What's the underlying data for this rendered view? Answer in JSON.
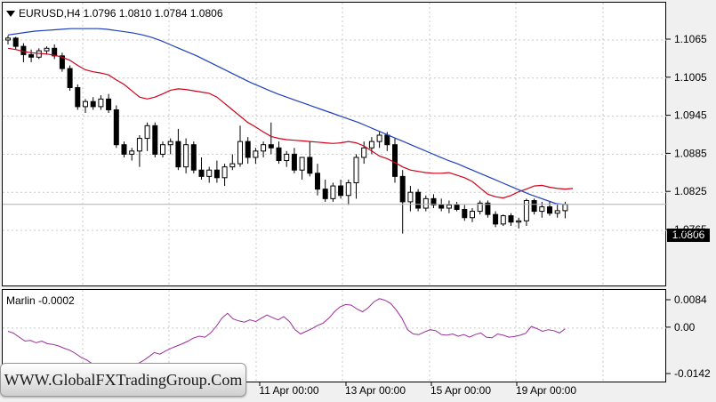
{
  "header": {
    "title": "EURUSD,H4  1.0796 1.0810 1.0784 1.0806"
  },
  "current_price": "1.0806",
  "indicator": {
    "title": "Marlin -0.0002"
  },
  "watermark": "WWW.GlobalFXTradingGroup.Com",
  "colors": {
    "candle_up": "#ffffff",
    "candle_down": "#000000",
    "ma_fast": "#d0021b",
    "ma_slow": "#1f3fbf",
    "indicator_line": "#9b2d9b",
    "grid": "#c8c8c8"
  },
  "chart_data": [
    {
      "type": "candlestick",
      "symbol": "EURUSD",
      "timeframe": "H4",
      "ylim": [
        1.074,
        1.11
      ],
      "y_ticks": [
        "1.1065",
        "1.1005",
        "1.0945",
        "1.0885",
        "1.0825",
        "1.0765"
      ],
      "x_ticks": [
        "11 Apr 00:00",
        "13 Apr 00:00",
        "15 Apr 00:00",
        "19 Apr 00:00"
      ],
      "grid": true,
      "candles": [
        [
          1.1065,
          1.1072,
          1.1058,
          1.1068
        ],
        [
          1.1068,
          1.107,
          1.105,
          1.1055
        ],
        [
          1.1055,
          1.106,
          1.103,
          1.1042
        ],
        [
          1.1042,
          1.105,
          1.103,
          1.1038
        ],
        [
          1.1038,
          1.1052,
          1.1035,
          1.1048
        ],
        [
          1.1048,
          1.1055,
          1.1042,
          1.1052
        ],
        [
          1.1052,
          1.1058,
          1.1035,
          1.104
        ],
        [
          1.104,
          1.1045,
          1.1015,
          1.102
        ],
        [
          1.102,
          1.1025,
          1.0985,
          1.099
        ],
        [
          1.099,
          1.0995,
          1.0955,
          1.096
        ],
        [
          1.096,
          1.0972,
          1.095,
          1.0968
        ],
        [
          1.0968,
          1.0975,
          1.0955,
          1.096
        ],
        [
          1.096,
          1.0978,
          1.0955,
          1.0972
        ],
        [
          1.0972,
          1.098,
          1.095,
          1.0955
        ],
        [
          1.0955,
          1.0962,
          1.0895,
          1.09
        ],
        [
          1.09,
          1.0905,
          1.088,
          1.0885
        ],
        [
          1.0885,
          1.0895,
          1.0875,
          1.089
        ],
        [
          1.089,
          1.0915,
          1.0865,
          1.091
        ],
        [
          1.091,
          1.0935,
          1.089,
          1.093
        ],
        [
          1.093,
          1.0935,
          1.088,
          1.0885
        ],
        [
          1.0885,
          1.0905,
          1.088,
          1.09
        ],
        [
          1.09,
          1.091,
          1.0885,
          1.0905
        ],
        [
          1.0905,
          1.0925,
          1.086,
          1.0865
        ],
        [
          1.0865,
          1.091,
          1.0855,
          1.09
        ],
        [
          1.09,
          1.0905,
          1.0855,
          1.086
        ],
        [
          1.086,
          1.088,
          1.0845,
          1.085
        ],
        [
          1.085,
          1.0865,
          1.084,
          1.086
        ],
        [
          1.086,
          1.0875,
          1.084,
          1.0848
        ],
        [
          1.0848,
          1.087,
          1.0835,
          1.0865
        ],
        [
          1.0865,
          1.0885,
          1.086,
          1.087
        ],
        [
          1.087,
          1.093,
          1.0865,
          1.0905
        ],
        [
          1.0905,
          1.0912,
          1.087,
          1.088
        ],
        [
          1.088,
          1.0895,
          1.087,
          1.089
        ],
        [
          1.089,
          1.0905,
          1.088,
          1.09
        ],
        [
          1.09,
          1.0935,
          1.0885,
          1.0895
        ],
        [
          1.0895,
          1.0905,
          1.087,
          1.0875
        ],
        [
          1.0875,
          1.089,
          1.0865,
          1.0885
        ],
        [
          1.0885,
          1.0895,
          1.0855,
          1.086
        ],
        [
          1.086,
          1.088,
          1.0845,
          1.088
        ],
        [
          1.088,
          1.0905,
          1.085,
          1.0855
        ],
        [
          1.0855,
          1.087,
          1.082,
          1.083
        ],
        [
          1.083,
          1.0845,
          1.081,
          1.0815
        ],
        [
          1.0815,
          1.084,
          1.081,
          1.0835
        ],
        [
          1.0835,
          1.0845,
          1.0815,
          1.082
        ],
        [
          1.082,
          1.0845,
          1.0805,
          1.084
        ],
        [
          1.084,
          1.0885,
          1.0815,
          1.088
        ],
        [
          1.088,
          1.0905,
          1.087,
          1.0895
        ],
        [
          1.0895,
          1.0912,
          1.0885,
          1.0905
        ],
        [
          1.0905,
          1.092,
          1.0895,
          1.0915
        ],
        [
          1.0915,
          1.092,
          1.089,
          1.09
        ],
        [
          1.09,
          1.091,
          1.084,
          1.085
        ],
        [
          1.085,
          1.086,
          1.076,
          1.081
        ],
        [
          1.081,
          1.0835,
          1.0795,
          1.0825
        ],
        [
          1.0825,
          1.083,
          1.0795,
          1.08
        ],
        [
          1.08,
          1.082,
          1.0795,
          1.0815
        ],
        [
          1.0815,
          1.0822,
          1.08,
          1.0805
        ],
        [
          1.0805,
          1.0815,
          1.0795,
          1.08
        ],
        [
          1.08,
          1.0812,
          1.0792,
          1.0805
        ],
        [
          1.0805,
          1.081,
          1.0795,
          1.0798
        ],
        [
          1.0798,
          1.0805,
          1.078,
          1.0785
        ],
        [
          1.0785,
          1.08,
          1.0778,
          1.0795
        ],
        [
          1.0795,
          1.0812,
          1.079,
          1.0808
        ],
        [
          1.0808,
          1.0812,
          1.0785,
          1.079
        ],
        [
          1.079,
          1.0795,
          1.077,
          1.0775
        ],
        [
          1.0775,
          1.079,
          1.0772,
          1.0788
        ],
        [
          1.0788,
          1.0792,
          1.0772,
          1.0778
        ],
        [
          1.0778,
          1.0785,
          1.0768,
          1.078
        ],
        [
          1.078,
          1.0815,
          1.0772,
          1.0812
        ],
        [
          1.0812,
          1.0815,
          1.079,
          1.0795
        ],
        [
          1.0795,
          1.081,
          1.0785,
          1.0802
        ],
        [
          1.0802,
          1.081,
          1.0788,
          1.0792
        ],
        [
          1.0792,
          1.0806,
          1.0785,
          1.0796
        ],
        [
          1.0796,
          1.081,
          1.0784,
          1.0806
        ]
      ],
      "ma_fast": [
        1.1052,
        1.105,
        1.1047,
        1.1045,
        1.1044,
        1.1043,
        1.1041,
        1.1038,
        1.1033,
        1.1025,
        1.1018,
        1.1015,
        1.1013,
        1.101,
        1.1002,
        1.0995,
        1.0985,
        1.0975,
        1.0972,
        1.0975,
        1.098,
        1.0986,
        1.0988,
        1.0987,
        1.0985,
        1.0983,
        1.0981,
        1.0975,
        1.0965,
        1.0955,
        1.0945,
        1.0935,
        1.0928,
        1.092,
        1.0913,
        1.091,
        1.0908,
        1.0907,
        1.0906,
        1.0905,
        1.0904,
        1.0903,
        1.0902,
        1.0903,
        1.0905,
        1.0903,
        1.0898,
        1.089,
        1.0882,
        1.0878,
        1.0872,
        1.0865,
        1.086,
        1.0858,
        1.0856,
        1.0855,
        1.0855,
        1.0856,
        1.0852,
        1.0848,
        1.0842,
        1.0832,
        1.0822,
        1.0818,
        1.0816,
        1.082,
        1.0826,
        1.083,
        1.0835,
        1.0836,
        1.0833,
        1.0831,
        1.083,
        1.0831
      ],
      "ma_slow": [
        1.1073,
        1.1075,
        1.1077,
        1.1079,
        1.108,
        1.1081,
        1.1082,
        1.1083,
        1.1083,
        1.1083,
        1.1083,
        1.1082,
        1.108,
        1.1078,
        1.1076,
        1.1073,
        1.1069,
        1.1064,
        1.1058,
        1.1052,
        1.1046,
        1.104,
        1.1033,
        1.1026,
        1.1019,
        1.1012,
        1.1005,
        1.0998,
        1.0992,
        1.0986,
        1.098,
        1.0975,
        1.097,
        1.0965,
        1.096,
        1.0955,
        1.095,
        1.0945,
        1.094,
        1.0935,
        1.0929,
        1.0923,
        1.0917,
        1.0911,
        1.0905,
        1.0899,
        1.0893,
        1.0887,
        1.0881,
        1.0875,
        1.087,
        1.0864,
        1.0858,
        1.0852,
        1.0846,
        1.084,
        1.0834,
        1.0828,
        1.0822,
        1.0817,
        1.0812,
        1.0807,
        1.0806
      ]
    },
    {
      "type": "line",
      "title": "Marlin -0.0002",
      "ylim": [
        -0.0142,
        0.0084
      ],
      "y_ticks": [
        "0.0084",
        "0.00",
        "-0.0142"
      ],
      "grid": true,
      "values": [
        -0.001,
        -0.0016,
        -0.0028,
        -0.004,
        -0.0038,
        -0.0045,
        -0.004,
        -0.0048,
        -0.005,
        -0.0055,
        -0.0062,
        -0.0068,
        -0.0078,
        -0.009,
        -0.0098,
        -0.011,
        -0.0118,
        -0.0132,
        -0.0138,
        -0.014,
        -0.0135,
        -0.0128,
        -0.0118,
        -0.011,
        -0.01,
        -0.0088,
        -0.0075,
        -0.008,
        -0.007,
        -0.0062,
        -0.0055,
        -0.0048,
        -0.004,
        -0.003,
        -0.0025,
        -0.0028,
        -0.0015,
        0.0005,
        0.003,
        0.0045,
        0.0028,
        0.0022,
        0.0018,
        0.0025,
        0.002,
        0.003,
        0.004,
        0.0032,
        0.0025,
        0.0035,
        0.002,
        -0.0005,
        -0.0018,
        -0.001,
        -0.0002,
        0.0008,
        0.0015,
        0.003,
        0.005,
        0.0065,
        0.0072,
        0.007,
        0.0058,
        0.005,
        0.0062,
        0.008,
        0.009,
        0.0085,
        0.0075,
        0.0055,
        0.003,
        -0.0005,
        -0.0018,
        -0.002,
        -0.0012,
        -0.0005,
        -0.0008,
        -0.002,
        -0.0022,
        -0.0018,
        -0.0025,
        -0.002,
        -0.0028,
        -0.002,
        -0.0015,
        -0.0028,
        -0.003,
        -0.0018,
        -0.0022,
        -0.0028,
        -0.0026,
        -0.0022,
        -0.0016,
        0.0005,
        -0.0002,
        -0.001,
        -0.0005,
        -0.0008,
        -0.0015,
        -0.0002
      ]
    }
  ]
}
